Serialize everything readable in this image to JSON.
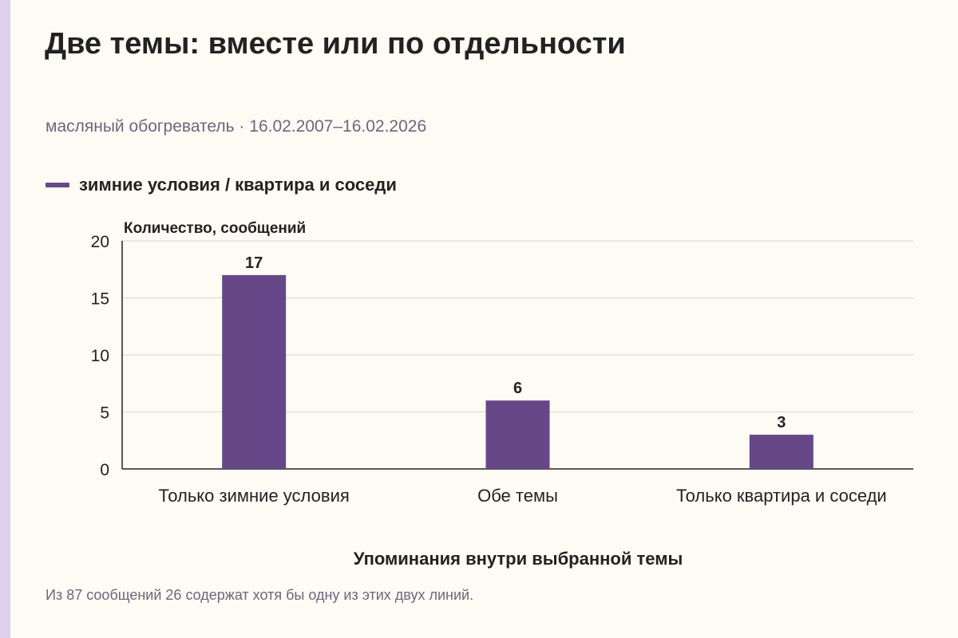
{
  "title": "Две темы: вместе или по отдельности",
  "subtitle": "масляный обогреватель · 16.02.2007–16.02.2026",
  "footnote": "Из 87 сообщений 26 содержат хотя бы одну из этих двух линий.",
  "colors": {
    "bar": "#664889",
    "accent_strip": "#dcd0ee",
    "background": "#fdfbf3"
  },
  "chart_data": {
    "type": "bar",
    "categories": [
      "Только зимние условия",
      "Обе темы",
      "Только квартира и соседи"
    ],
    "series": [
      {
        "name": "зимние условия / квартира и соседи",
        "values": [
          17,
          6,
          3
        ]
      }
    ],
    "ylabel": "Количество, сообщений",
    "xlabel": "Упоминания внутри выбранной темы",
    "ylim": [
      0,
      20
    ],
    "yticks": [
      "0",
      "5",
      "10",
      "15",
      "20"
    ],
    "data_labels": [
      "17",
      "6",
      "3"
    ],
    "grid": true,
    "legend_position": "top-left"
  }
}
